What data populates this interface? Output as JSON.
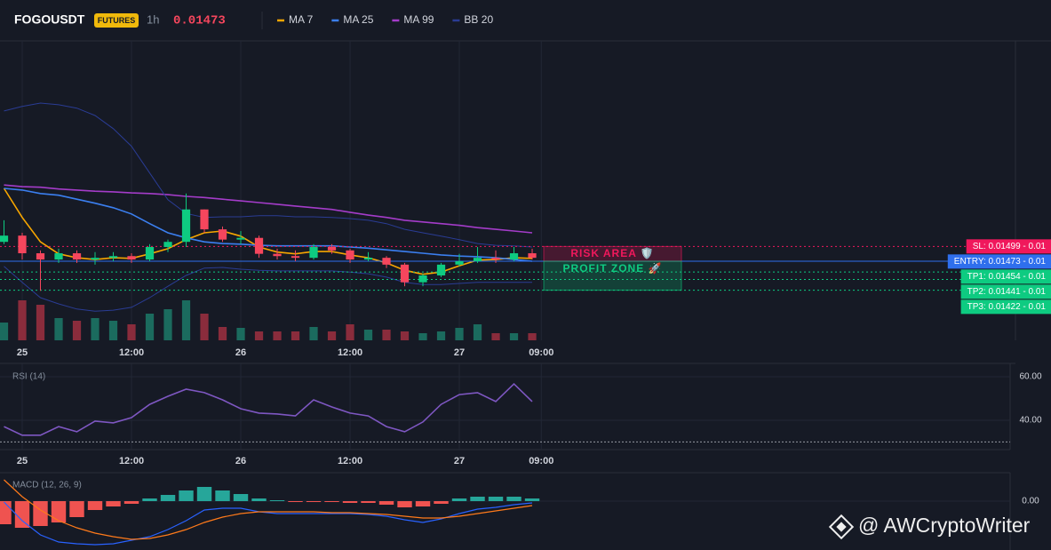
{
  "header": {
    "symbol": "FOGOUSDT",
    "badge": "FUTURES",
    "interval": "1h",
    "price": 0.01473
  },
  "watermark": "@ AWCryptoWriter",
  "chart_data": [
    {
      "type": "candlestick",
      "x": [
        -2,
        0,
        2,
        4,
        6,
        8,
        10,
        12,
        14,
        16,
        18,
        20,
        22,
        24,
        26,
        28,
        30,
        32,
        34,
        36,
        38,
        40,
        42,
        44,
        46,
        48,
        50,
        52,
        54,
        56
      ],
      "open": [
        0.01507,
        0.01518,
        0.01487,
        0.01476,
        0.01487,
        0.01476,
        0.01479,
        0.01482,
        0.01476,
        0.01498,
        0.01507,
        0.01564,
        0.01529,
        0.01511,
        0.01514,
        0.01486,
        0.01482,
        0.01479,
        0.01498,
        0.01492,
        0.01476,
        0.01479,
        0.01467,
        0.01436,
        0.01448,
        0.01467,
        0.01473,
        0.01479,
        0.01476,
        0.01487
      ],
      "high": [
        0.01545,
        0.01523,
        0.01492,
        0.01495,
        0.01492,
        0.01489,
        0.01489,
        0.01487,
        0.01503,
        0.01511,
        0.01592,
        0.01564,
        0.01534,
        0.01526,
        0.01518,
        0.01495,
        0.01492,
        0.01503,
        0.01503,
        0.01495,
        0.01489,
        0.01482,
        0.0147,
        0.01451,
        0.0147,
        0.01486,
        0.01498,
        0.01492,
        0.01498,
        0.01495
      ],
      "low": [
        0.01503,
        0.01476,
        0.01421,
        0.0147,
        0.0147,
        0.01467,
        0.01473,
        0.0147,
        0.01473,
        0.01489,
        0.01498,
        0.01523,
        0.01507,
        0.01503,
        0.01479,
        0.01476,
        0.01473,
        0.01476,
        0.01486,
        0.0147,
        0.01473,
        0.01461,
        0.01429,
        0.01429,
        0.01445,
        0.01464,
        0.0147,
        0.0147,
        0.01473,
        0.01476
      ],
      "close": [
        0.01518,
        0.01487,
        0.01476,
        0.01487,
        0.01476,
        0.01479,
        0.01482,
        0.01476,
        0.01498,
        0.01507,
        0.01564,
        0.01529,
        0.01511,
        0.01514,
        0.01486,
        0.01482,
        0.01479,
        0.01498,
        0.01492,
        0.01476,
        0.01479,
        0.01467,
        0.01436,
        0.01448,
        0.01467,
        0.01473,
        0.01479,
        0.01476,
        0.01487,
        0.01479
      ],
      "volume": [
        20,
        45,
        40,
        25,
        22,
        25,
        22,
        18,
        30,
        35,
        45,
        30,
        15,
        14,
        10,
        10,
        10,
        15,
        10,
        18,
        12,
        12,
        10,
        8,
        10,
        14,
        18,
        8,
        8,
        8
      ],
      "volume_ylim": [
        0,
        60
      ],
      "up_color": "#0ecb81",
      "down_color": "#f6465d",
      "volume_up_color": "#1b6b5e",
      "volume_down_color": "#8a2c3c",
      "overlays": [
        {
          "name": "MA 7",
          "color": "#f7a600",
          "values": [
            0.01601,
            0.0155,
            0.01507,
            0.01486,
            0.01479,
            0.01476,
            0.01479,
            0.01478,
            0.01486,
            0.01495,
            0.01511,
            0.01523,
            0.01526,
            0.01517,
            0.01498,
            0.01489,
            0.01486,
            0.0149,
            0.0149,
            0.01484,
            0.01479,
            0.0147,
            0.01457,
            0.0145,
            0.01454,
            0.01465,
            0.01475,
            0.01476,
            0.01479,
            0.01478
          ]
        },
        {
          "name": "MA 25",
          "color": "#3b7ff0",
          "values": [
            0.01601,
            0.01598,
            0.01592,
            0.01589,
            0.01582,
            0.01575,
            0.01567,
            0.01556,
            0.01539,
            0.01523,
            0.01514,
            0.01507,
            0.01504,
            0.01503,
            0.01501,
            0.015,
            0.015,
            0.015,
            0.015,
            0.01498,
            0.01496,
            0.01493,
            0.0149,
            0.01487,
            0.01484,
            0.01482,
            0.01481,
            0.01479,
            0.01476,
            0.01473
          ]
        },
        {
          "name": "MA 99",
          "color": "#a43cc9",
          "values": [
            0.01607,
            0.01604,
            0.01603,
            0.016,
            0.01598,
            0.01596,
            0.01595,
            0.01593,
            0.01592,
            0.0159,
            0.01587,
            0.01585,
            0.01582,
            0.01579,
            0.01576,
            0.01573,
            0.0157,
            0.01567,
            0.01564,
            0.01559,
            0.01554,
            0.0155,
            0.01545,
            0.01542,
            0.01539,
            0.01536,
            0.01532,
            0.01529,
            0.01526,
            0.01523
          ]
        },
        {
          "name": "BB 20",
          "color": "#2a3c94",
          "upper": [
            0.01737,
            0.01745,
            0.01751,
            0.01748,
            0.01742,
            0.01729,
            0.01706,
            0.01675,
            0.01628,
            0.01581,
            0.01557,
            0.0155,
            0.01551,
            0.01551,
            0.01553,
            0.01553,
            0.01551,
            0.01551,
            0.0155,
            0.01548,
            0.01545,
            0.01539,
            0.01529,
            0.01523,
            0.01517,
            0.01511,
            0.01504,
            0.01501,
            0.015,
            0.01498
          ],
          "lower": [
            0.01464,
            0.01436,
            0.01409,
            0.01398,
            0.01389,
            0.01385,
            0.01387,
            0.01392,
            0.01409,
            0.01429,
            0.01448,
            0.01461,
            0.01462,
            0.01459,
            0.01457,
            0.01456,
            0.01456,
            0.01456,
            0.01456,
            0.01454,
            0.01451,
            0.01445,
            0.01436,
            0.01432,
            0.01432,
            0.01434,
            0.01436,
            0.01436,
            0.01436,
            0.01436
          ]
        }
      ],
      "levels": [
        {
          "label": "SL: 0.01499 - 0.01",
          "value": 0.01499,
          "color": "#f0185c",
          "style": "dotted"
        },
        {
          "label": "ENTRY: 0.01473 - 0.01",
          "value": 0.01473,
          "color": "#2f6fed",
          "style": "solid"
        },
        {
          "label": "TP1: 0.01454 - 0.01",
          "value": 0.01454,
          "color": "#0ecb81",
          "style": "dotted"
        },
        {
          "label": "TP2: 0.01441 - 0.01",
          "value": 0.01441,
          "color": "#0ecb81",
          "style": "dotted"
        },
        {
          "label": "TP3: 0.01422 - 0.01",
          "value": 0.01422,
          "color": "#0ecb81",
          "style": "dotted"
        }
      ],
      "zones": [
        {
          "label": "RISK AREA 🛡️",
          "range": [
            0.01499,
            0.01473
          ],
          "color": "#f0185c"
        },
        {
          "label": "PROFIT ZONE 🚀",
          "range": [
            0.01473,
            0.01422
          ],
          "color": "#0ecb81"
        }
      ],
      "xlim": [
        -2.44,
        109.07
      ],
      "xticks": [
        {
          "value": 0,
          "label": "25"
        },
        {
          "value": 12,
          "label": "12:00"
        },
        {
          "value": 24,
          "label": "26"
        },
        {
          "value": 36,
          "label": "12:00"
        },
        {
          "value": 48,
          "label": "27"
        },
        {
          "value": 57,
          "label": "09:00"
        }
      ],
      "ylim": [
        0.01334,
        0.01854
      ],
      "grid": true
    },
    {
      "type": "line",
      "title": "RSI (14)",
      "color": "#7e57c2",
      "x": [
        -2,
        0,
        2,
        4,
        6,
        8,
        10,
        12,
        14,
        16,
        18,
        20,
        22,
        24,
        26,
        28,
        30,
        32,
        34,
        36,
        38,
        40,
        42,
        44,
        46,
        48,
        50,
        52,
        54,
        56
      ],
      "values": [
        37.1,
        33.1,
        33.1,
        37.1,
        34.7,
        39.6,
        38.8,
        41.2,
        47.3,
        51.0,
        54.3,
        52.7,
        49.4,
        45.3,
        43.3,
        42.9,
        42.0,
        49.4,
        46.1,
        43.3,
        42.0,
        37.1,
        34.7,
        39.2,
        47.3,
        51.8,
        52.7,
        48.6,
        56.7,
        48.6
      ],
      "reference_line": 30,
      "xlim": [
        -2.44,
        109.07
      ],
      "xticks": [
        {
          "value": 0,
          "label": "25"
        },
        {
          "value": 12,
          "label": "12:00"
        },
        {
          "value": 24,
          "label": "26"
        },
        {
          "value": 36,
          "label": "12:00"
        },
        {
          "value": 48,
          "label": "27"
        },
        {
          "value": 57,
          "label": "09:00"
        }
      ],
      "ylim": [
        26.5,
        64.5
      ],
      "yticks": [
        {
          "value": 60,
          "label": "60.00"
        },
        {
          "value": 40,
          "label": "40.00"
        }
      ],
      "grid": true
    },
    {
      "type": "macd",
      "title": "MACD (12, 26, 9)",
      "x": [
        -2,
        0,
        2,
        4,
        6,
        8,
        10,
        12,
        14,
        16,
        18,
        20,
        22,
        24,
        26,
        28,
        30,
        32,
        34,
        36,
        38,
        40,
        42,
        44,
        46,
        48,
        50,
        52,
        54,
        56
      ],
      "histogram": [
        -0.00013,
        -0.00015,
        -0.00014,
        -0.00012,
        -9e-05,
        -5e-05,
        -3e-05,
        -1.5e-05,
        1.5e-05,
        3.5e-05,
        6e-05,
        8e-05,
        6e-05,
        4e-05,
        1.5e-05,
        5e-06,
        -5e-06,
        -5e-06,
        -5e-06,
        -1e-05,
        -1e-05,
        -2e-05,
        -3.5e-05,
        -3e-05,
        -1.5e-05,
        1.5e-05,
        2.5e-05,
        2.5e-05,
        2.5e-05,
        1.5e-05
      ],
      "macd": [
        -5e-06,
        -0.00011,
        -0.00019,
        -0.00023,
        -0.00024,
        -0.000245,
        -0.00024,
        -0.00022,
        -0.0002,
        -0.00016,
        -0.00011,
        -5e-05,
        -4e-05,
        -4e-05,
        -6e-05,
        -7e-05,
        -7e-05,
        -7e-05,
        -7e-05,
        -7e-05,
        -7.5e-05,
        -8.5e-05,
        -0.000105,
        -0.00012,
        -0.0001,
        -7e-05,
        -4.5e-05,
        -3.5e-05,
        -2e-05,
        -1e-05
      ],
      "signal": [
        0.00012,
        2.5e-05,
        -5e-05,
        -0.00011,
        -0.00015,
        -0.00018,
        -0.0002,
        -0.000215,
        -0.00021,
        -0.00019,
        -0.00016,
        -0.00012,
        -9e-05,
        -7e-05,
        -6e-05,
        -6e-05,
        -6e-05,
        -6e-05,
        -6.5e-05,
        -6.5e-05,
        -7e-05,
        -7.5e-05,
        -8.5e-05,
        -9.5e-05,
        -9.5e-05,
        -8.5e-05,
        -7e-05,
        -5.5e-05,
        -4e-05,
        -2.5e-05
      ],
      "macd_color": "#2962ff",
      "signal_color": "#ff7a1a",
      "hist_up_color": "#26a69a",
      "hist_down_color": "#ef5350",
      "xlim": [
        -2.44,
        109.07
      ],
      "ylim": [
        -0.000275,
        0.000145
      ],
      "yticks": [
        {
          "value": 0,
          "label": "0.00"
        }
      ],
      "grid": true
    }
  ]
}
